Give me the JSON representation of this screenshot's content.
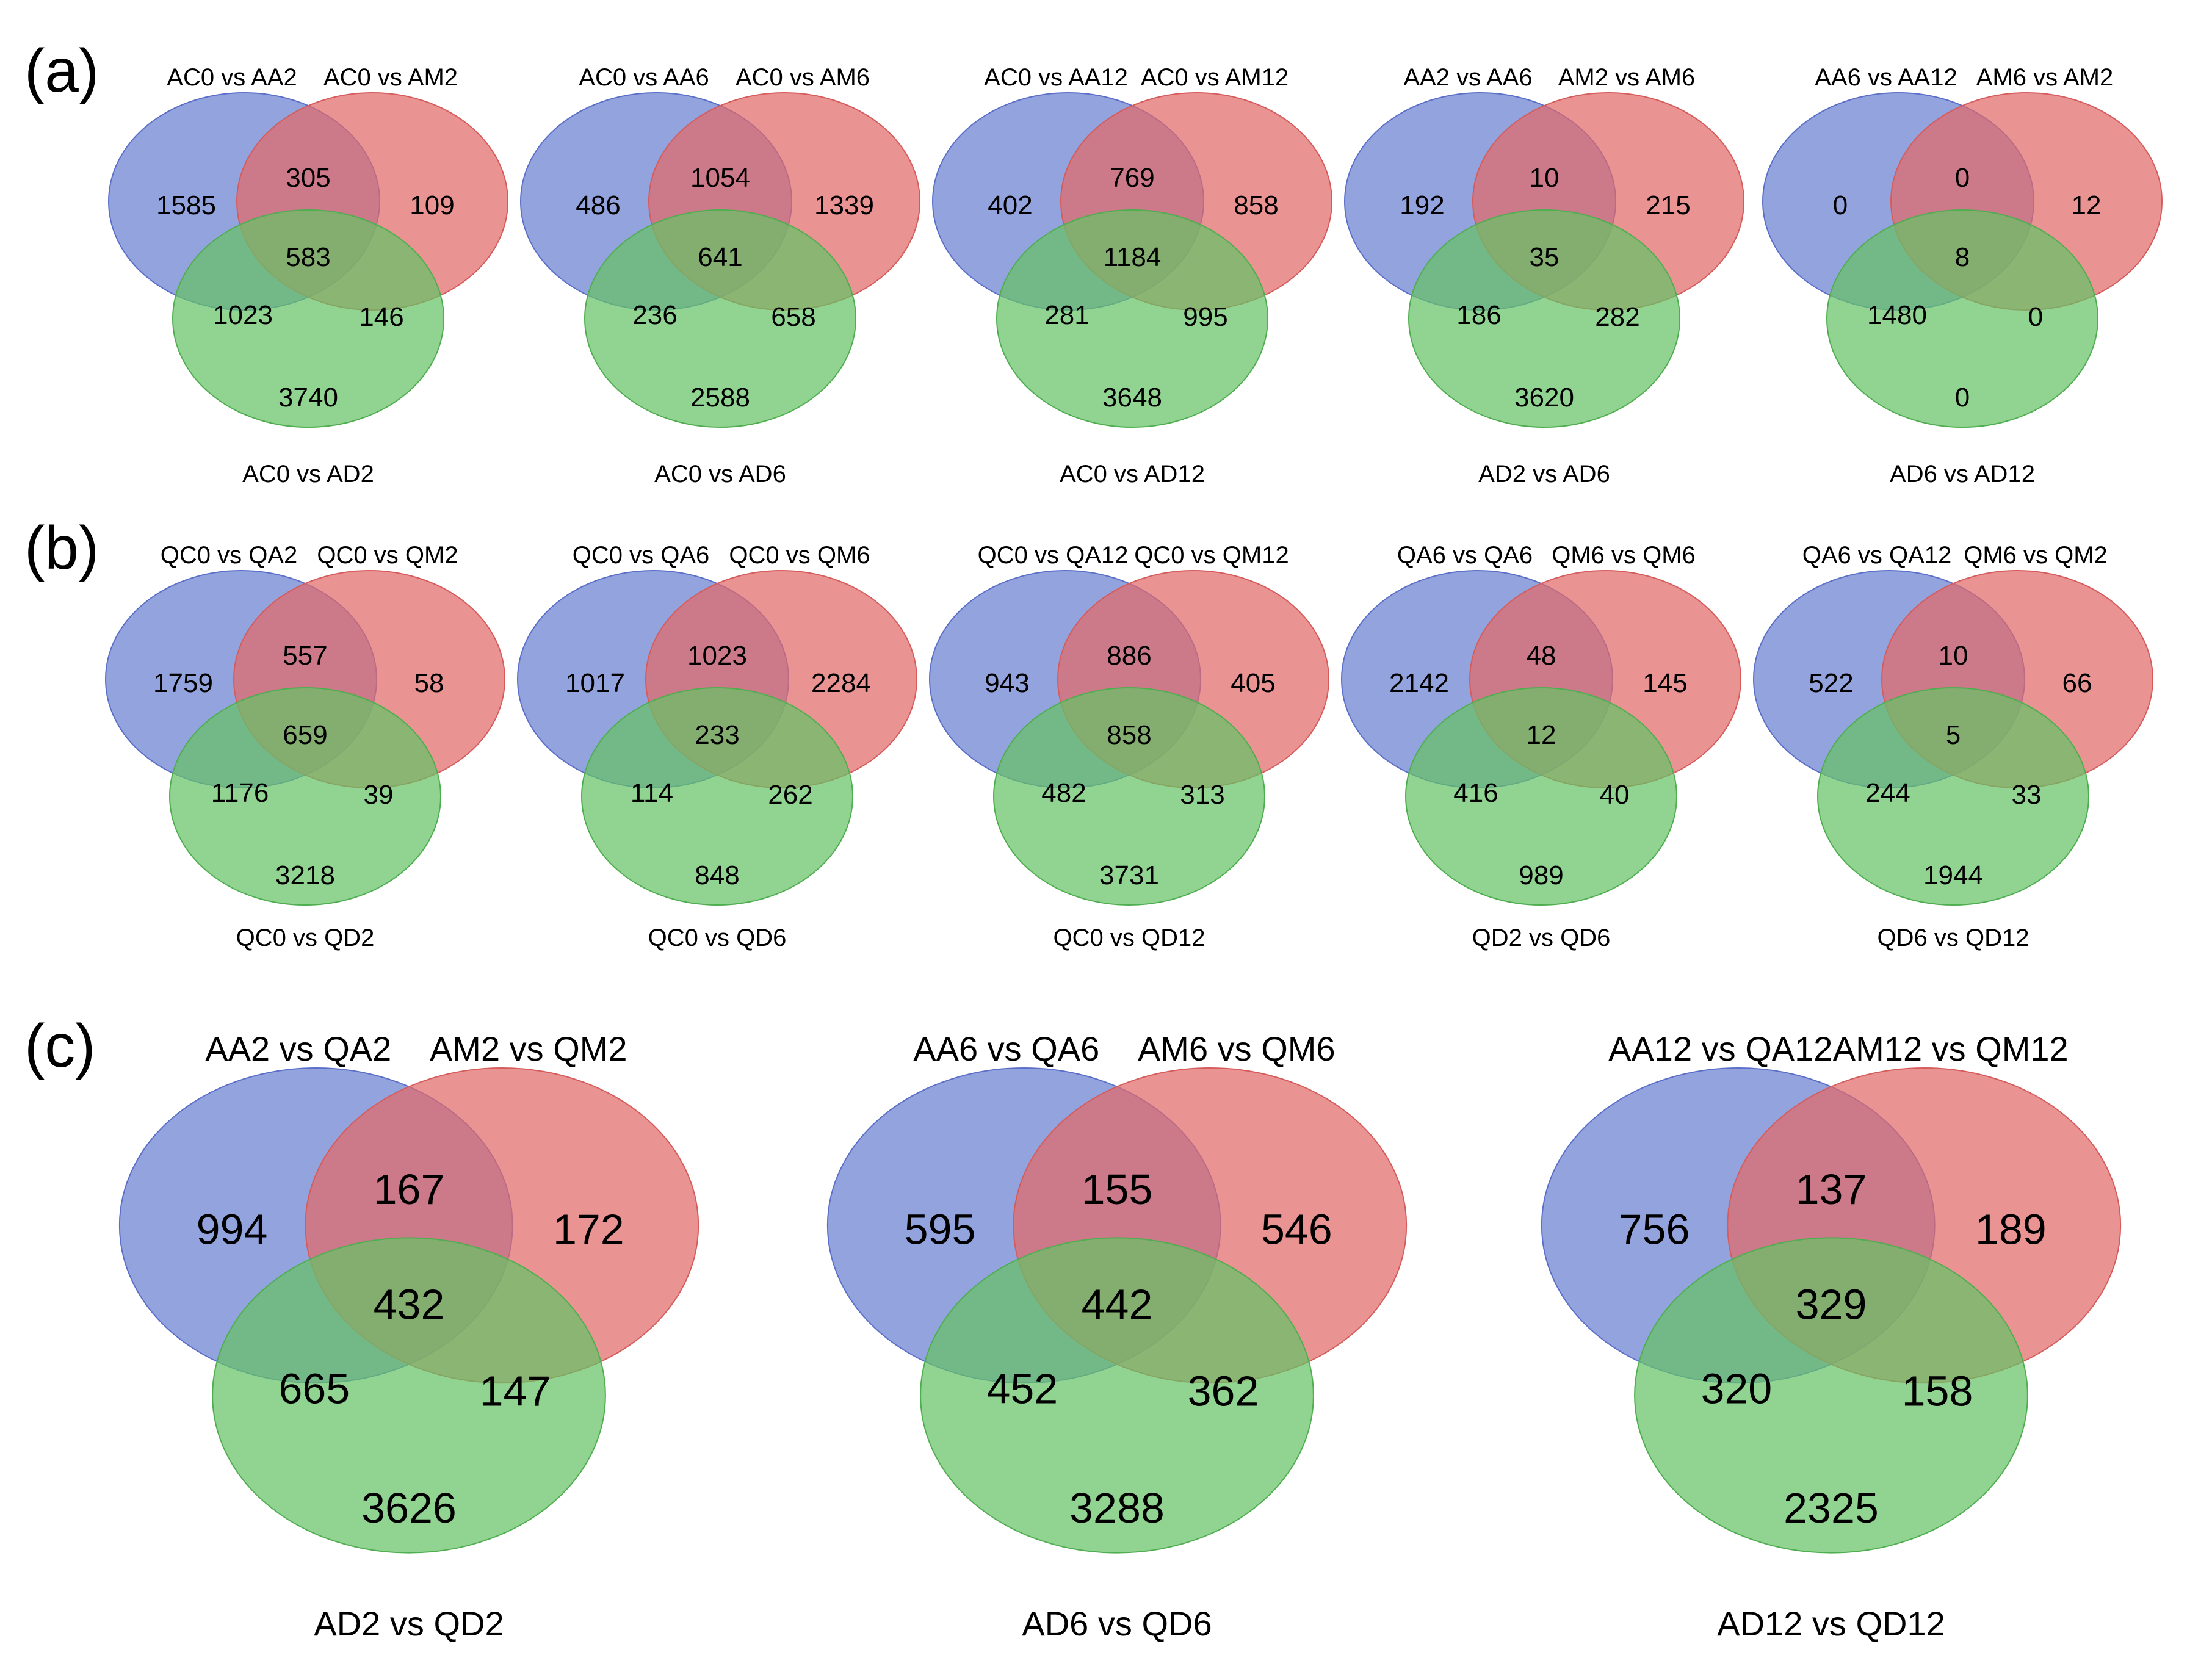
{
  "colors": {
    "blue": "#6a7fd0",
    "blue_stroke": "#5b6fc8",
    "red": "#e26a6a",
    "red_stroke": "#d65c5c",
    "green": "#66c266",
    "green_stroke": "#4fae4f",
    "background": "#ffffff"
  },
  "panels": [
    {
      "letter": "(a)",
      "venns": [
        {
          "labels": [
            "AC0 vs AA2",
            "AC0 vs AM2",
            "AC0 vs AD2"
          ],
          "counts": {
            "a_only": "1585",
            "ab": "305",
            "b_only": "109",
            "abc": "583",
            "ac": "1023",
            "bc": "146",
            "c_only": "3740"
          }
        },
        {
          "labels": [
            "AC0 vs AA6",
            "AC0 vs AM6",
            "AC0 vs AD6"
          ],
          "counts": {
            "a_only": "486",
            "ab": "1054",
            "b_only": "1339",
            "abc": "641",
            "ac": "236",
            "bc": "658",
            "c_only": "2588"
          }
        },
        {
          "labels": [
            "AC0 vs AA12",
            "AC0 vs AM12",
            "AC0 vs AD12"
          ],
          "counts": {
            "a_only": "402",
            "ab": "769",
            "b_only": "858",
            "abc": "1184",
            "ac": "281",
            "bc": "995",
            "c_only": "3648"
          }
        },
        {
          "labels": [
            "AA2 vs AA6",
            "AM2 vs AM6",
            "AD2 vs AD6"
          ],
          "counts": {
            "a_only": "192",
            "ab": "10",
            "b_only": "215",
            "abc": "35",
            "ac": "186",
            "bc": "282",
            "c_only": "3620"
          }
        },
        {
          "labels": [
            "AA6 vs AA12",
            "AM6 vs AM2",
            "AD6 vs AD12"
          ],
          "counts": {
            "a_only": "0",
            "ab": "0",
            "b_only": "12",
            "abc": "8",
            "ac": "1480",
            "bc": "0",
            "c_only": "0"
          }
        }
      ]
    },
    {
      "letter": "(b)",
      "venns": [
        {
          "labels": [
            "QC0 vs QA2",
            "QC0 vs QM2",
            "QC0 vs QD2"
          ],
          "counts": {
            "a_only": "1759",
            "ab": "557",
            "b_only": "58",
            "abc": "659",
            "ac": "1176",
            "bc": "39",
            "c_only": "3218"
          }
        },
        {
          "labels": [
            "QC0 vs QA6",
            "QC0 vs QM6",
            "QC0 vs QD6"
          ],
          "counts": {
            "a_only": "1017",
            "ab": "1023",
            "b_only": "2284",
            "abc": "233",
            "ac": "114",
            "bc": "262",
            "c_only": "848"
          }
        },
        {
          "labels": [
            "QC0 vs QA12",
            "QC0 vs QM12",
            "QC0 vs QD12"
          ],
          "counts": {
            "a_only": "943",
            "ab": "886",
            "b_only": "405",
            "abc": "858",
            "ac": "482",
            "bc": "313",
            "c_only": "3731"
          }
        },
        {
          "labels": [
            "QA6 vs QA6",
            "QM6 vs QM6",
            "QD2 vs QD6"
          ],
          "counts": {
            "a_only": "2142",
            "ab": "48",
            "b_only": "145",
            "abc": "12",
            "ac": "416",
            "bc": "40",
            "c_only": "989"
          }
        },
        {
          "labels": [
            "QA6 vs QA12",
            "QM6 vs QM2",
            "QD6 vs QD12"
          ],
          "counts": {
            "a_only": "522",
            "ab": "10",
            "b_only": "66",
            "abc": "5",
            "ac": "244",
            "bc": "33",
            "c_only": "1944"
          }
        }
      ]
    },
    {
      "letter": "(c)",
      "venns": [
        {
          "labels": [
            "AA2 vs QA2",
            "AM2 vs QM2",
            "AD2 vs QD2"
          ],
          "counts": {
            "a_only": "994",
            "ab": "167",
            "b_only": "172",
            "abc": "432",
            "ac": "665",
            "bc": "147",
            "c_only": "3626"
          }
        },
        {
          "labels": [
            "AA6 vs QA6",
            "AM6 vs QM6",
            "AD6 vs QD6"
          ],
          "counts": {
            "a_only": "595",
            "ab": "155",
            "b_only": "546",
            "abc": "442",
            "ac": "452",
            "bc": "362",
            "c_only": "3288"
          }
        },
        {
          "labels": [
            "AA12 vs QA12",
            "AM12 vs QM12",
            "AD12 vs QD12"
          ],
          "counts": {
            "a_only": "756",
            "ab": "137",
            "b_only": "189",
            "abc": "329",
            "ac": "320",
            "bc": "158",
            "c_only": "2325"
          }
        }
      ]
    }
  ]
}
